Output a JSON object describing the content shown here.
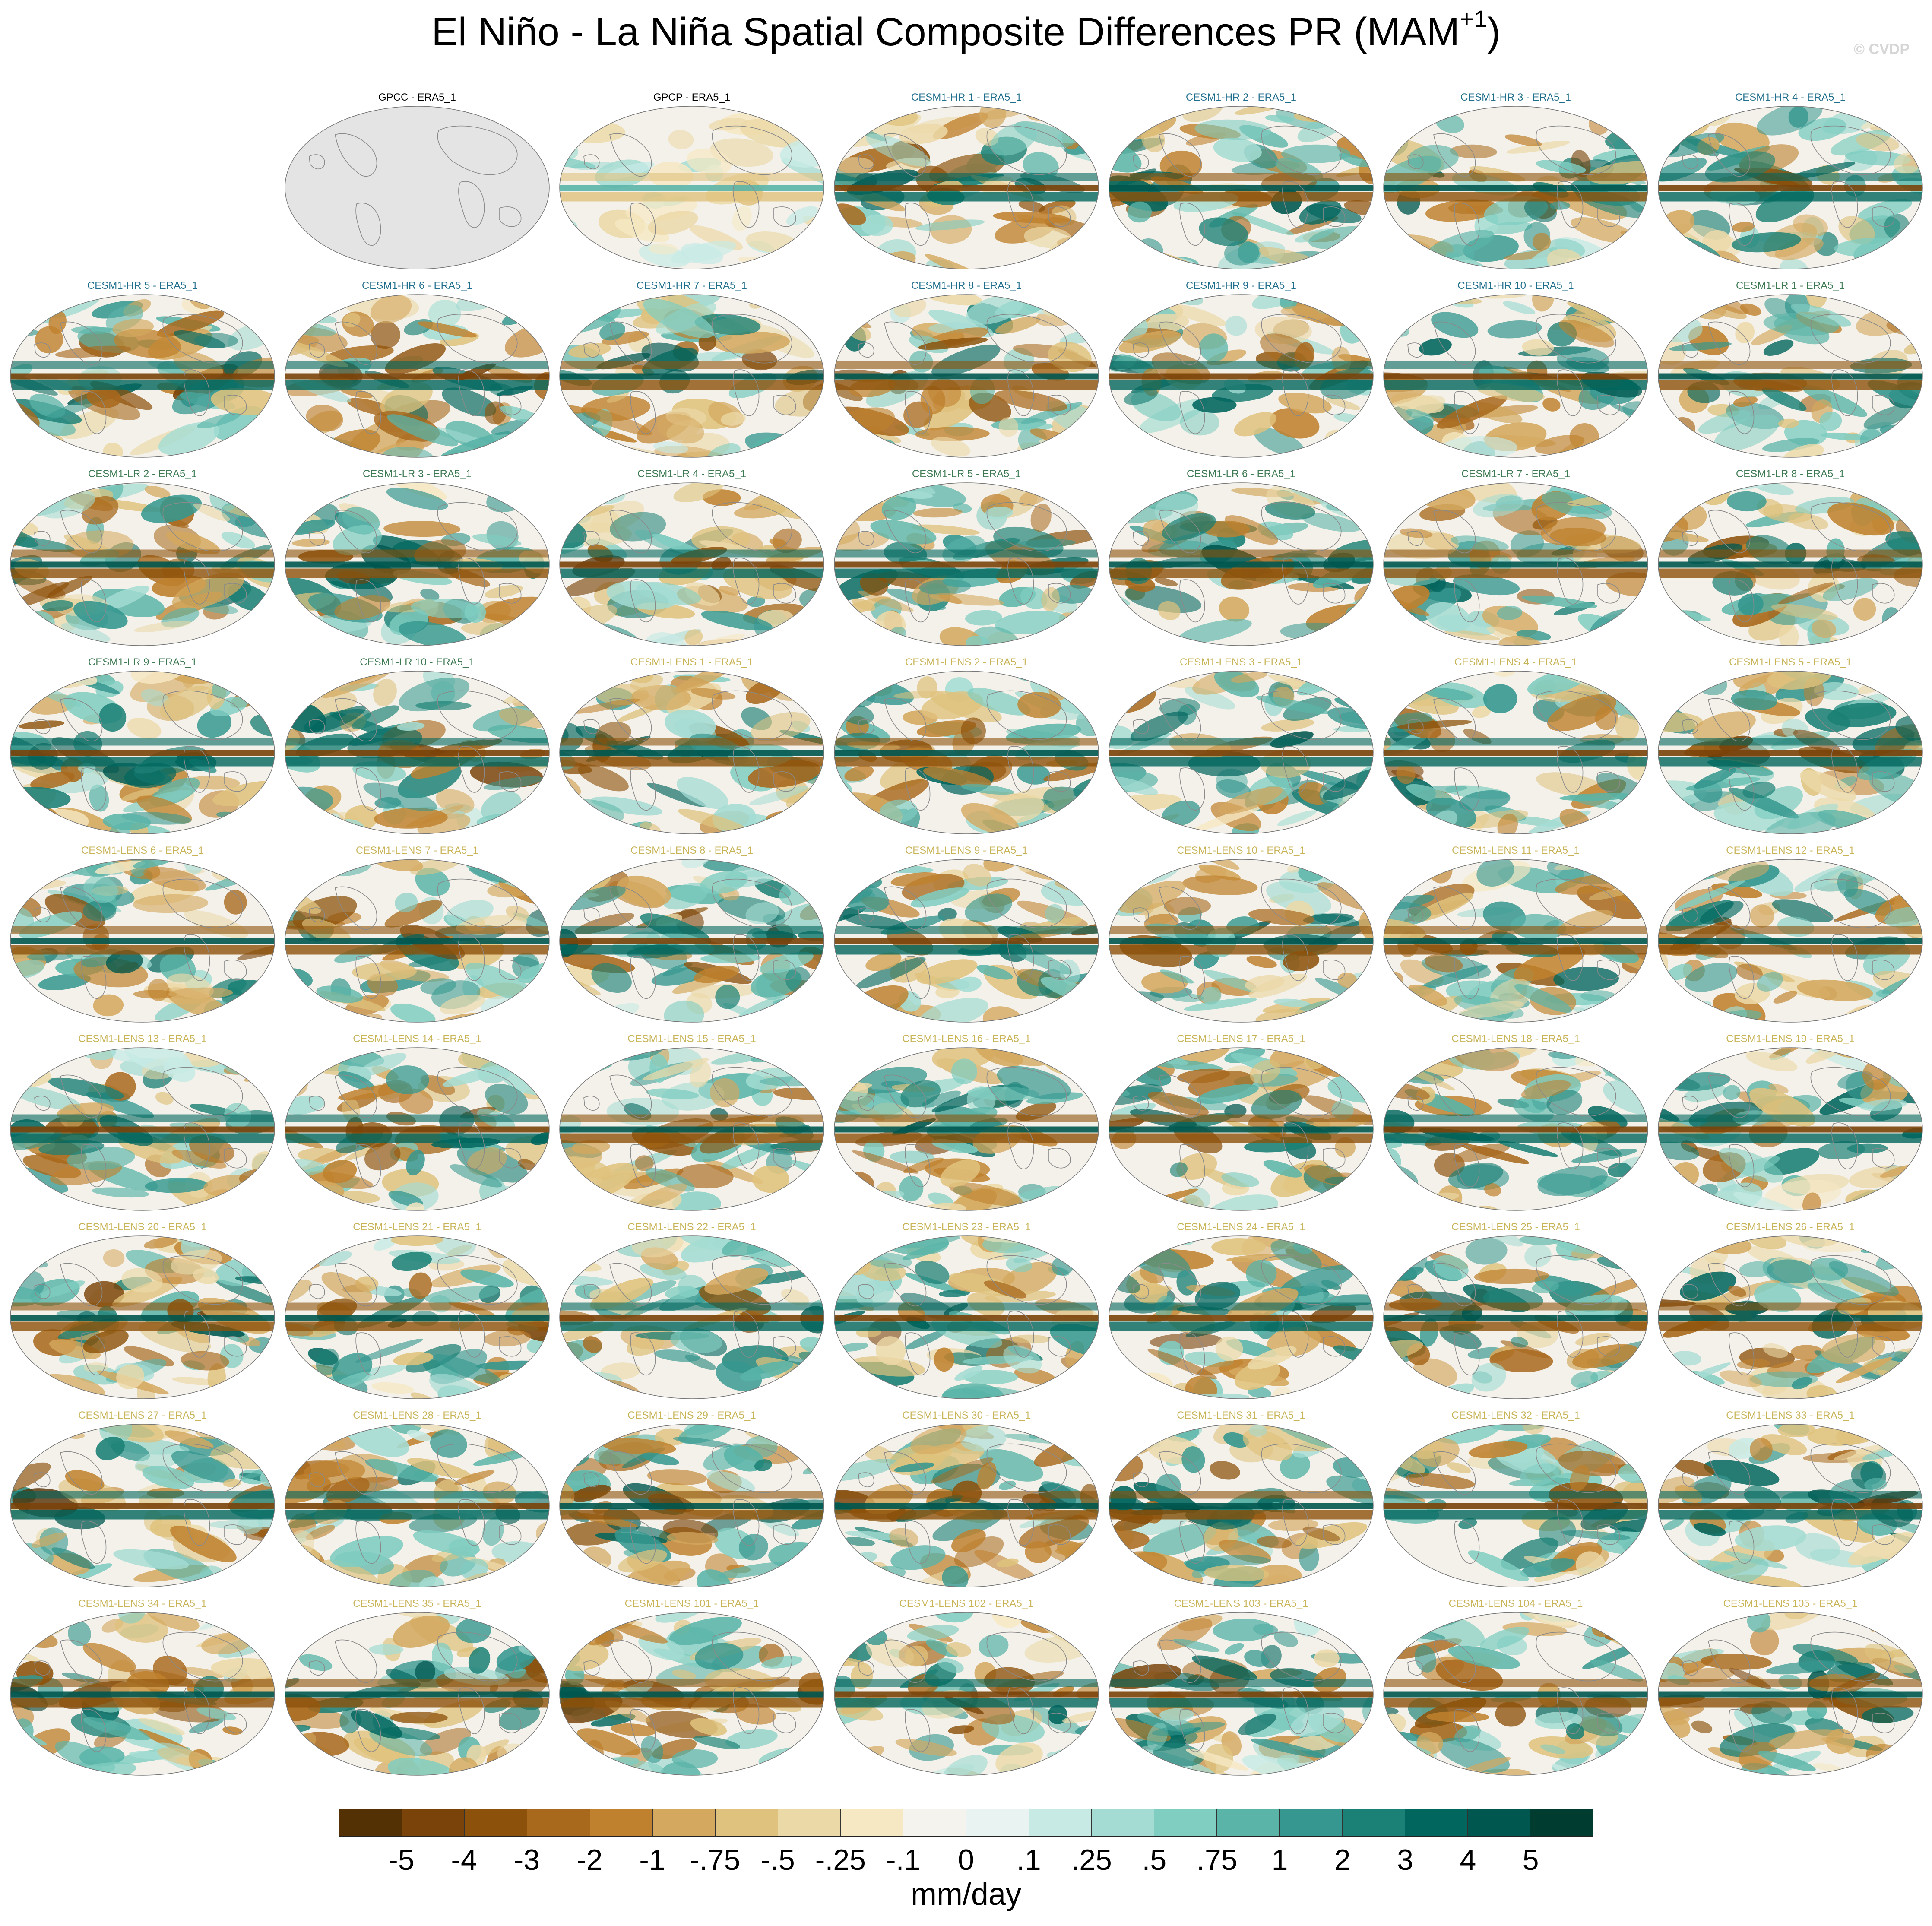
{
  "title": "El Niño - La Niña Spatial Composite Differences PR (MAM",
  "title_superscript": "+1",
  "title_close": ")",
  "copyright": "© CVDP",
  "colors": {
    "obs_title": "#000000",
    "hr_title": "#1f6e8c",
    "lr_title": "#3d7a52",
    "lens_title": "#c9b458",
    "ocean_background": "#f3f1ea",
    "land_mask": "#e4e4e4",
    "coastline": "#8a8a8a"
  },
  "panels": [
    {
      "label": "GPCC - ERA5_1",
      "group": "obs",
      "variant": "masked"
    },
    {
      "label": "GPCP - ERA5_1",
      "group": "obs",
      "variant": "weak"
    },
    {
      "label": "CESM1-HR 1 - ERA5_1",
      "group": "hr"
    },
    {
      "label": "CESM1-HR 2 - ERA5_1",
      "group": "hr"
    },
    {
      "label": "CESM1-HR 3 - ERA5_1",
      "group": "hr"
    },
    {
      "label": "CESM1-HR 4 - ERA5_1",
      "group": "hr"
    },
    {
      "label": "CESM1-HR 5 - ERA5_1",
      "group": "hr"
    },
    {
      "label": "CESM1-HR 6 - ERA5_1",
      "group": "hr"
    },
    {
      "label": "CESM1-HR 7 - ERA5_1",
      "group": "hr"
    },
    {
      "label": "CESM1-HR 8 - ERA5_1",
      "group": "hr"
    },
    {
      "label": "CESM1-HR 9 - ERA5_1",
      "group": "hr"
    },
    {
      "label": "CESM1-HR 10 - ERA5_1",
      "group": "hr"
    },
    {
      "label": "CESM1-LR 1 - ERA5_1",
      "group": "lr"
    },
    {
      "label": "CESM1-LR 2 - ERA5_1",
      "group": "lr"
    },
    {
      "label": "CESM1-LR 3 - ERA5_1",
      "group": "lr"
    },
    {
      "label": "CESM1-LR 4 - ERA5_1",
      "group": "lr"
    },
    {
      "label": "CESM1-LR 5 - ERA5_1",
      "group": "lr"
    },
    {
      "label": "CESM1-LR 6 - ERA5_1",
      "group": "lr"
    },
    {
      "label": "CESM1-LR 7 - ERA5_1",
      "group": "lr"
    },
    {
      "label": "CESM1-LR 8 - ERA5_1",
      "group": "lr"
    },
    {
      "label": "CESM1-LR 9 - ERA5_1",
      "group": "lr"
    },
    {
      "label": "CESM1-LR 10 - ERA5_1",
      "group": "lr"
    },
    {
      "label": "CESM1-LENS 1 - ERA5_1",
      "group": "lens"
    },
    {
      "label": "CESM1-LENS 2 - ERA5_1",
      "group": "lens"
    },
    {
      "label": "CESM1-LENS 3 - ERA5_1",
      "group": "lens"
    },
    {
      "label": "CESM1-LENS 4 - ERA5_1",
      "group": "lens"
    },
    {
      "label": "CESM1-LENS 5 - ERA5_1",
      "group": "lens"
    },
    {
      "label": "CESM1-LENS 6 - ERA5_1",
      "group": "lens"
    },
    {
      "label": "CESM1-LENS 7 - ERA5_1",
      "group": "lens"
    },
    {
      "label": "CESM1-LENS 8 - ERA5_1",
      "group": "lens"
    },
    {
      "label": "CESM1-LENS 9 - ERA5_1",
      "group": "lens"
    },
    {
      "label": "CESM1-LENS 10 - ERA5_1",
      "group": "lens"
    },
    {
      "label": "CESM1-LENS 11 - ERA5_1",
      "group": "lens"
    },
    {
      "label": "CESM1-LENS 12 - ERA5_1",
      "group": "lens"
    },
    {
      "label": "CESM1-LENS 13 - ERA5_1",
      "group": "lens"
    },
    {
      "label": "CESM1-LENS 14 - ERA5_1",
      "group": "lens"
    },
    {
      "label": "CESM1-LENS 15 - ERA5_1",
      "group": "lens"
    },
    {
      "label": "CESM1-LENS 16 - ERA5_1",
      "group": "lens"
    },
    {
      "label": "CESM1-LENS 17 - ERA5_1",
      "group": "lens"
    },
    {
      "label": "CESM1-LENS 18 - ERA5_1",
      "group": "lens"
    },
    {
      "label": "CESM1-LENS 19 - ERA5_1",
      "group": "lens"
    },
    {
      "label": "CESM1-LENS 20 - ERA5_1",
      "group": "lens"
    },
    {
      "label": "CESM1-LENS 21 - ERA5_1",
      "group": "lens"
    },
    {
      "label": "CESM1-LENS 22 - ERA5_1",
      "group": "lens"
    },
    {
      "label": "CESM1-LENS 23 - ERA5_1",
      "group": "lens"
    },
    {
      "label": "CESM1-LENS 24 - ERA5_1",
      "group": "lens"
    },
    {
      "label": "CESM1-LENS 25 - ERA5_1",
      "group": "lens"
    },
    {
      "label": "CESM1-LENS 26 - ERA5_1",
      "group": "lens"
    },
    {
      "label": "CESM1-LENS 27 - ERA5_1",
      "group": "lens"
    },
    {
      "label": "CESM1-LENS 28 - ERA5_1",
      "group": "lens"
    },
    {
      "label": "CESM1-LENS 29 - ERA5_1",
      "group": "lens"
    },
    {
      "label": "CESM1-LENS 30 - ERA5_1",
      "group": "lens"
    },
    {
      "label": "CESM1-LENS 31 - ERA5_1",
      "group": "lens"
    },
    {
      "label": "CESM1-LENS 32 - ERA5_1",
      "group": "lens"
    },
    {
      "label": "CESM1-LENS 33 - ERA5_1",
      "group": "lens"
    },
    {
      "label": "CESM1-LENS 34 - ERA5_1",
      "group": "lens"
    },
    {
      "label": "CESM1-LENS 35 - ERA5_1",
      "group": "lens"
    },
    {
      "label": "CESM1-LENS 101 - ERA5_1",
      "group": "lens"
    },
    {
      "label": "CESM1-LENS 102 - ERA5_1",
      "group": "lens"
    },
    {
      "label": "CESM1-LENS 103 - ERA5_1",
      "group": "lens"
    },
    {
      "label": "CESM1-LENS 104 - ERA5_1",
      "group": "lens"
    },
    {
      "label": "CESM1-LENS 105 - ERA5_1",
      "group": "lens"
    }
  ],
  "colorbar": {
    "colors": [
      "#543005",
      "#7a4309",
      "#8c510a",
      "#a8691d",
      "#bf812d",
      "#d4a85e",
      "#dfc27d",
      "#ecd9a8",
      "#f6e8c3",
      "#f5f3ee",
      "#e9f4f2",
      "#c7eae5",
      "#a4dcd3",
      "#80cdc1",
      "#5ab4a8",
      "#35978f",
      "#1b8075",
      "#01665e",
      "#00574f",
      "#003c30"
    ],
    "ticks": [
      "-5",
      "-4",
      "-3",
      "-2",
      "-1",
      "-.75",
      "-.5",
      "-.25",
      "-.1",
      "0",
      ".1",
      ".25",
      ".5",
      ".75",
      "1",
      "2",
      "3",
      "4",
      "5"
    ],
    "units": "mm/day"
  }
}
